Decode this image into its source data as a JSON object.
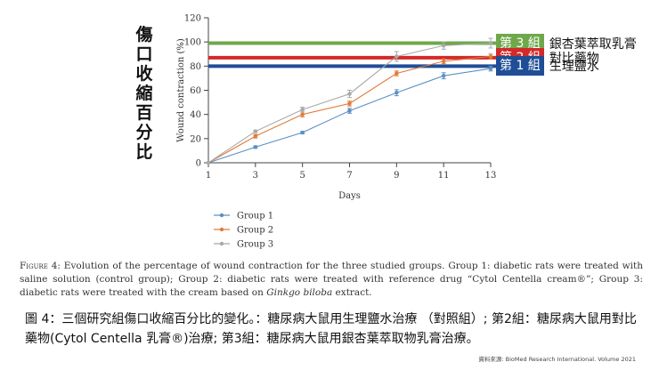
{
  "chart_data": {
    "type": "line",
    "xlabel": "Days",
    "ylabel": "Wound contraction (%)",
    "x": [
      1,
      3,
      5,
      7,
      9,
      11,
      13
    ],
    "xlim": [
      1,
      13
    ],
    "ylim": [
      0,
      120
    ],
    "yticks": [
      0,
      20,
      40,
      60,
      80,
      100,
      120
    ],
    "xticks": [
      1,
      3,
      5,
      7,
      9,
      11,
      13
    ],
    "legend_position": "bottom-left",
    "series": [
      {
        "name": "Group 1",
        "color": "#5b8fc4",
        "values": [
          0,
          13,
          25,
          43,
          58,
          72,
          78
        ],
        "errors": [
          0,
          1,
          1,
          2,
          2.5,
          2.5,
          2
        ]
      },
      {
        "name": "Group 2",
        "color": "#e07b39",
        "values": [
          0,
          22,
          40,
          49,
          74,
          84,
          88
        ],
        "errors": [
          0,
          1.5,
          2,
          2,
          2,
          2,
          2
        ]
      },
      {
        "name": "Group 3",
        "color": "#a8a8a8",
        "values": [
          0,
          26,
          44,
          57,
          88,
          97,
          99
        ],
        "errors": [
          0,
          1,
          2,
          3,
          4,
          3,
          4
        ]
      }
    ],
    "reference_lines": [
      {
        "value": 99,
        "color": "#6fa84b",
        "tag": "第 3 組",
        "text": "銀杏葉萃取乳膏"
      },
      {
        "value": 87,
        "color": "#d22a2a",
        "tag": "第 2 組",
        "text": "對比藥物"
      },
      {
        "value": 80,
        "color": "#1f4e96",
        "tag": "第 1 組",
        "text": "生理鹽水"
      }
    ]
  },
  "overlay_ylabel": "傷口收縮百分比",
  "figure_caption": {
    "label": "Figure 4:",
    "text": " Evolution of the percentage of wound contraction for the three studied groups. Group 1: diabetic rats were treated with saline solution (control group); Group 2: diabetic rats were treated with reference drug “Cytol Centella cream®”; Group 3: diabetic rats were treated with the cream based on ",
    "italic": "Ginkgo biloba",
    "end": " extract."
  },
  "chinese_caption": "圖 4：三個研究組傷口收縮百分比的變化。：糖尿病大鼠用生理鹽水治療 （對照組）; 第2組：糖尿病大鼠用對比藥物(Cytol Centella 乳膏®)治療; 第3組：糖尿病大鼠用銀杏葉萃取物乳膏治療。",
  "source": "資料來源: BioMed Research International. Volume 2021"
}
